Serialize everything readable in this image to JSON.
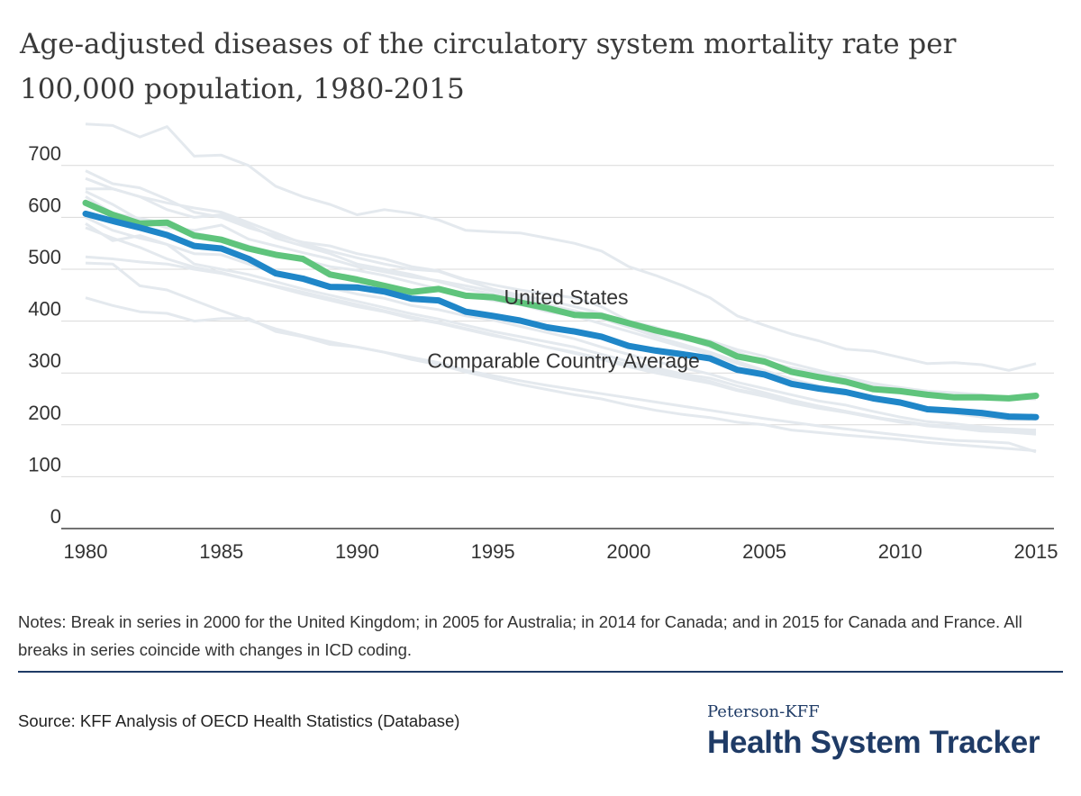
{
  "header": {
    "title": "Age-adjusted diseases of the circulatory system mortality rate per 100,000 population, 1980-2015"
  },
  "chart_data": {
    "type": "line",
    "title": "Age-adjusted diseases of the circulatory system mortality rate per 100,000 population, 1980-2015",
    "xlabel": "",
    "ylabel": "",
    "xlim": [
      1980,
      2015
    ],
    "ylim": [
      0,
      780
    ],
    "x_ticks": [
      1980,
      1985,
      1990,
      1995,
      2000,
      2005,
      2010,
      2015
    ],
    "y_ticks": [
      0,
      100,
      200,
      300,
      400,
      500,
      600,
      700
    ],
    "grid": true,
    "legend": "none",
    "x": [
      1980,
      1981,
      1982,
      1983,
      1984,
      1985,
      1986,
      1987,
      1988,
      1989,
      1990,
      1991,
      1992,
      1993,
      1994,
      1995,
      1996,
      1997,
      1998,
      1999,
      2000,
      2001,
      2002,
      2003,
      2004,
      2005,
      2006,
      2007,
      2008,
      2009,
      2010,
      2011,
      2012,
      2013,
      2014,
      2015
    ],
    "series": [
      {
        "name": "United States",
        "color": "#5fc47c",
        "values": [
          628,
          605,
          588,
          590,
          565,
          557,
          540,
          528,
          520,
          490,
          480,
          468,
          456,
          462,
          449,
          446,
          436,
          425,
          412,
          410,
          396,
          382,
          370,
          356,
          332,
          322,
          302,
          292,
          283,
          269,
          265,
          258,
          253,
          253,
          251,
          256
        ]
      },
      {
        "name": "Comparable Country Average",
        "color": "#1f86c8",
        "values": [
          607,
          593,
          580,
          566,
          545,
          540,
          520,
          492,
          482,
          466,
          465,
          457,
          443,
          440,
          418,
          410,
          401,
          388,
          380,
          370,
          352,
          343,
          336,
          328,
          306,
          297,
          279,
          270,
          263,
          251,
          243,
          230,
          227,
          223,
          216,
          215
        ]
      }
    ],
    "background_series_color": "#e4e9ee",
    "background_series": [
      {
        "values": [
          780,
          777,
          755,
          775,
          718,
          720,
          700,
          660,
          640,
          625,
          605,
          615,
          608,
          595,
          575,
          572,
          570,
          560,
          550,
          535,
          505,
          488,
          468,
          445,
          410,
          392,
          375,
          362,
          346,
          342,
          330,
          318,
          320,
          316,
          305,
          318
        ]
      },
      {
        "values": [
          690,
          665,
          657,
          635,
          610,
          600,
          580,
          565,
          552,
          545,
          530,
          520,
          505,
          497,
          480,
          470,
          460,
          452,
          445,
          428,
          400,
          388,
          368,
          350,
          330,
          318,
          305,
          295,
          282,
          276,
          270,
          265,
          262,
          258,
          252,
          250
        ]
      },
      {
        "values": [
          675,
          655,
          640,
          615,
          600,
          605,
          585,
          560,
          545,
          530,
          510,
          500,
          490,
          476,
          462,
          452,
          444,
          432,
          420,
          405,
          390,
          375,
          365,
          355,
          340,
          322,
          310,
          300,
          288,
          275,
          270,
          262,
          258,
          256,
          252,
          255
        ]
      },
      {
        "values": [
          655,
          655,
          640,
          628,
          618,
          610,
          590,
          570,
          550,
          535,
          522,
          510,
          500,
          496,
          478,
          462,
          450,
          440,
          428,
          415,
          396,
          382,
          372,
          362,
          345,
          332,
          318,
          305,
          292,
          280,
          272,
          265,
          258,
          254,
          250,
          250
        ]
      },
      {
        "values": [
          650,
          625,
          595,
          580,
          575,
          585,
          558,
          545,
          532,
          520,
          505,
          495,
          485,
          478,
          468,
          458,
          448,
          430,
          420,
          405,
          388,
          370,
          355,
          340,
          322,
          305,
          288,
          275,
          262,
          254,
          240,
          228,
          222,
          216,
          210,
          210
        ]
      },
      {
        "values": [
          640,
          608,
          598,
          588,
          570,
          560,
          545,
          530,
          518,
          505,
          498,
          488,
          475,
          462,
          450,
          440,
          432,
          418,
          410,
          395,
          380,
          365,
          350,
          336,
          318,
          302,
          288,
          275,
          262,
          250,
          240,
          228,
          222,
          215,
          212,
          210
        ]
      },
      {
        "values": [
          600,
          575,
          560,
          548,
          530,
          528,
          510,
          492,
          478,
          464,
          452,
          444,
          430,
          422,
          410,
          402,
          390,
          378,
          366,
          350,
          336,
          322,
          310,
          298,
          282,
          270,
          258,
          246,
          238,
          226,
          215,
          206,
          202,
          196,
          192,
          190
        ]
      },
      {
        "values": [
          588,
          555,
          565,
          548,
          510,
          500,
          490,
          476,
          462,
          450,
          438,
          426,
          414,
          404,
          392,
          380,
          370,
          360,
          350,
          336,
          322,
          310,
          298,
          290,
          275,
          262,
          248,
          236,
          226,
          215,
          208,
          200,
          196,
          190,
          186,
          182
        ]
      },
      {
        "values": [
          580,
          560,
          542,
          520,
          504,
          494,
          480,
          466,
          452,
          440,
          428,
          418,
          405,
          396,
          384,
          372,
          362,
          350,
          340,
          328,
          316,
          305,
          294,
          284,
          268,
          258,
          246,
          236,
          226,
          216,
          206,
          198,
          194,
          188,
          186,
          185
        ]
      },
      {
        "values": [
          524,
          520,
          514,
          510,
          500,
          492,
          480,
          468,
          456,
          444,
          432,
          420,
          408,
          398,
          386,
          374,
          362,
          350,
          338,
          326,
          312,
          300,
          290,
          280,
          266,
          255,
          242,
          232,
          224,
          214,
          205,
          200,
          196,
          194,
          190,
          190
        ]
      },
      {
        "values": [
          512,
          510,
          468,
          460,
          440,
          420,
          402,
          385,
          372,
          360,
          350,
          340,
          326,
          316,
          302,
          290,
          278,
          268,
          258,
          250,
          238,
          228,
          220,
          214,
          205,
          200,
          190,
          185,
          180,
          176,
          172,
          166,
          162,
          158,
          154,
          150
        ]
      },
      {
        "values": [
          445,
          430,
          418,
          415,
          400,
          405,
          405,
          380,
          370,
          355,
          350,
          340,
          330,
          320,
          305,
          295,
          285,
          276,
          268,
          260,
          252,
          244,
          236,
          228,
          220,
          212,
          205,
          198,
          192,
          186,
          180,
          175,
          170,
          168,
          165,
          148
        ]
      }
    ],
    "annotations": [
      {
        "text": "United States",
        "x": 1997.7,
        "y": 432
      },
      {
        "text": "Comparable Country Average",
        "x": 1997.6,
        "y": 310
      }
    ]
  },
  "notes": "Notes: Break in series in 2000 for the United Kingdom; in 2005 for Australia; in 2014 for Canada; and in 2015 for Canada and France. All breaks in series coincide with changes in ICD coding.",
  "source": "Source: KFF Analysis of OECD Health Statistics (Database)",
  "brand": {
    "top": "Peterson-KFF",
    "main": "Health System Tracker",
    "color": "#1f3b66"
  }
}
